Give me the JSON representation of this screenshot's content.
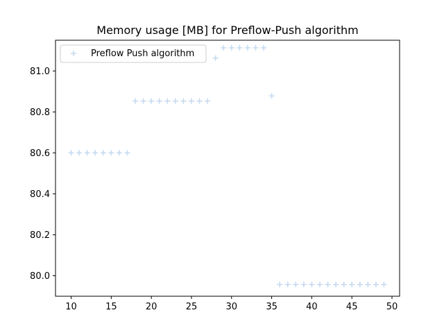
{
  "chart_data": {
    "type": "scatter",
    "title": "Memory usage [MB] for Preflow-Push algorithm",
    "xlabel": "",
    "ylabel": "",
    "xlim": [
      8.05,
      50.95
    ],
    "ylim": [
      79.9,
      81.15
    ],
    "x_ticks": [
      10,
      15,
      20,
      25,
      30,
      35,
      40,
      45,
      50
    ],
    "y_ticks": [
      80.0,
      80.2,
      80.4,
      80.6,
      80.8,
      81.0
    ],
    "grid": false,
    "legend_position": "upper-left",
    "marker": "plus",
    "series": [
      {
        "name": "Preflow Push algorithm",
        "color": "#c6dbef",
        "x": [
          10,
          11,
          12,
          13,
          14,
          15,
          16,
          17,
          18,
          19,
          20,
          21,
          22,
          23,
          24,
          25,
          26,
          27,
          28,
          29,
          30,
          31,
          32,
          33,
          34,
          35,
          36,
          37,
          38,
          39,
          40,
          41,
          42,
          43,
          44,
          45,
          46,
          47,
          48,
          49
        ],
        "y": [
          80.6,
          80.6,
          80.6,
          80.6,
          80.6,
          80.6,
          80.6,
          80.6,
          80.853,
          80.853,
          80.853,
          80.853,
          80.853,
          80.853,
          80.853,
          80.853,
          80.853,
          80.853,
          81.063,
          81.113,
          81.113,
          81.113,
          81.113,
          81.113,
          81.113,
          80.878,
          79.957,
          79.957,
          79.957,
          79.957,
          79.957,
          79.957,
          79.957,
          79.957,
          79.957,
          79.957,
          79.957,
          79.957,
          79.957,
          79.957
        ]
      }
    ]
  }
}
